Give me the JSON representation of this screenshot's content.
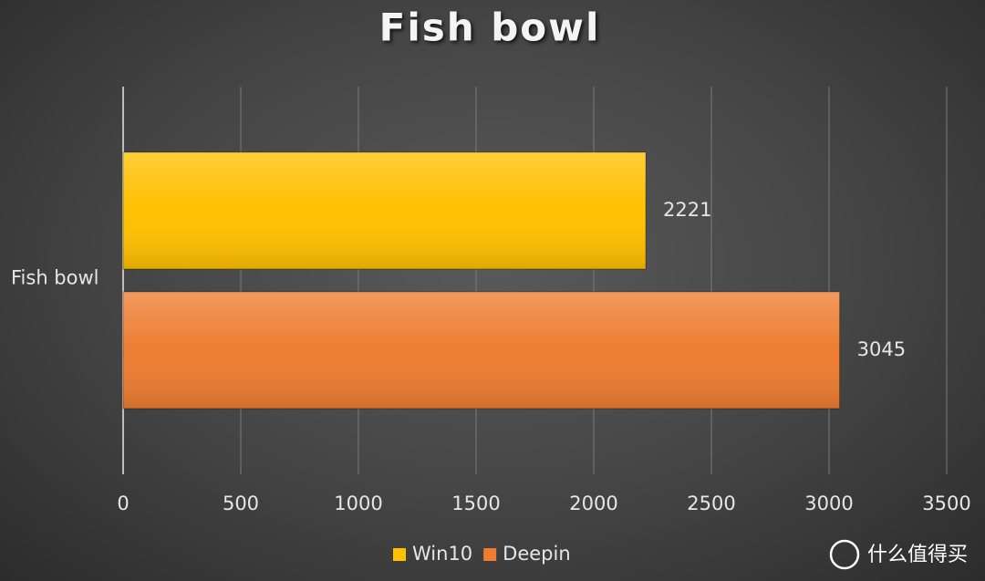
{
  "chart_data": {
    "type": "bar",
    "orientation": "horizontal",
    "title": "Fish bowl",
    "categories": [
      "Fish bowl"
    ],
    "series": [
      {
        "name": "Win10",
        "color": "#ffc000",
        "values": [
          2221
        ]
      },
      {
        "name": "Deepin",
        "color": "#ed7d31",
        "values": [
          3045
        ]
      }
    ],
    "xlim": [
      0,
      3500
    ],
    "xticks": [
      0,
      500,
      1000,
      1500,
      2000,
      2500,
      3000,
      3500
    ],
    "grid": true,
    "legend": "bottom"
  },
  "watermark": "什么值得买"
}
